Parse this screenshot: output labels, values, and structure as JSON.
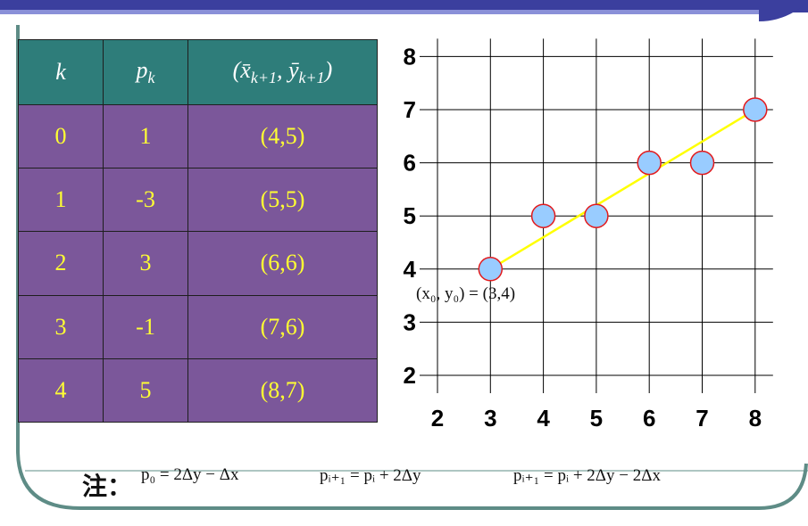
{
  "colors": {
    "band_dark": "#3b3f9e",
    "band_light": "#6a70c8",
    "frame": "#5e8c86",
    "table_header": "#2e7d7a",
    "table_body": "#7b579a",
    "table_text": "#ffff33",
    "point_fill": "#99ccff",
    "point_stroke": "#e31a1c",
    "line": "#ffff00"
  },
  "table": {
    "headers": [
      "k",
      "p_k",
      "(x̄_{k+1}, ȳ_{k+1})"
    ],
    "header_display": {
      "k": "k",
      "p_base": "p",
      "p_sub": "k",
      "xy": "(x̄",
      "xy_sub1": "k+1",
      "xy_mid": ", ȳ",
      "xy_sub2": "k+1",
      "xy_end": ")"
    },
    "rows": [
      [
        "0",
        "1",
        "(4,5)"
      ],
      [
        "1",
        "-3",
        "(5,5)"
      ],
      [
        "2",
        "3",
        "(6,6)"
      ],
      [
        "3",
        "-1",
        "(7,6)"
      ],
      [
        "4",
        "5",
        "(8,7)"
      ]
    ]
  },
  "chart_data": {
    "type": "scatter",
    "x_ticks": [
      "2",
      "3",
      "4",
      "5",
      "6",
      "7",
      "8"
    ],
    "y_ticks": [
      "2",
      "3",
      "4",
      "5",
      "6",
      "7",
      "8"
    ],
    "xlim": [
      2,
      8
    ],
    "ylim": [
      2,
      8
    ],
    "grid": true,
    "points": [
      {
        "x": 3,
        "y": 4
      },
      {
        "x": 4,
        "y": 5
      },
      {
        "x": 5,
        "y": 5
      },
      {
        "x": 6,
        "y": 6
      },
      {
        "x": 7,
        "y": 6
      },
      {
        "x": 8,
        "y": 7
      }
    ],
    "line": {
      "from": {
        "x": 3,
        "y": 4
      },
      "to": {
        "x": 8,
        "y": 7
      }
    },
    "annotation": "(x₀, y₀) = (3,4)"
  },
  "notes": {
    "label": "注：",
    "f1": "p₀ = 2Δy − Δx",
    "f2": "pᵢ₊₁ = pᵢ + 2Δy",
    "f3": "pᵢ₊₁ = pᵢ + 2Δy − 2Δx"
  }
}
